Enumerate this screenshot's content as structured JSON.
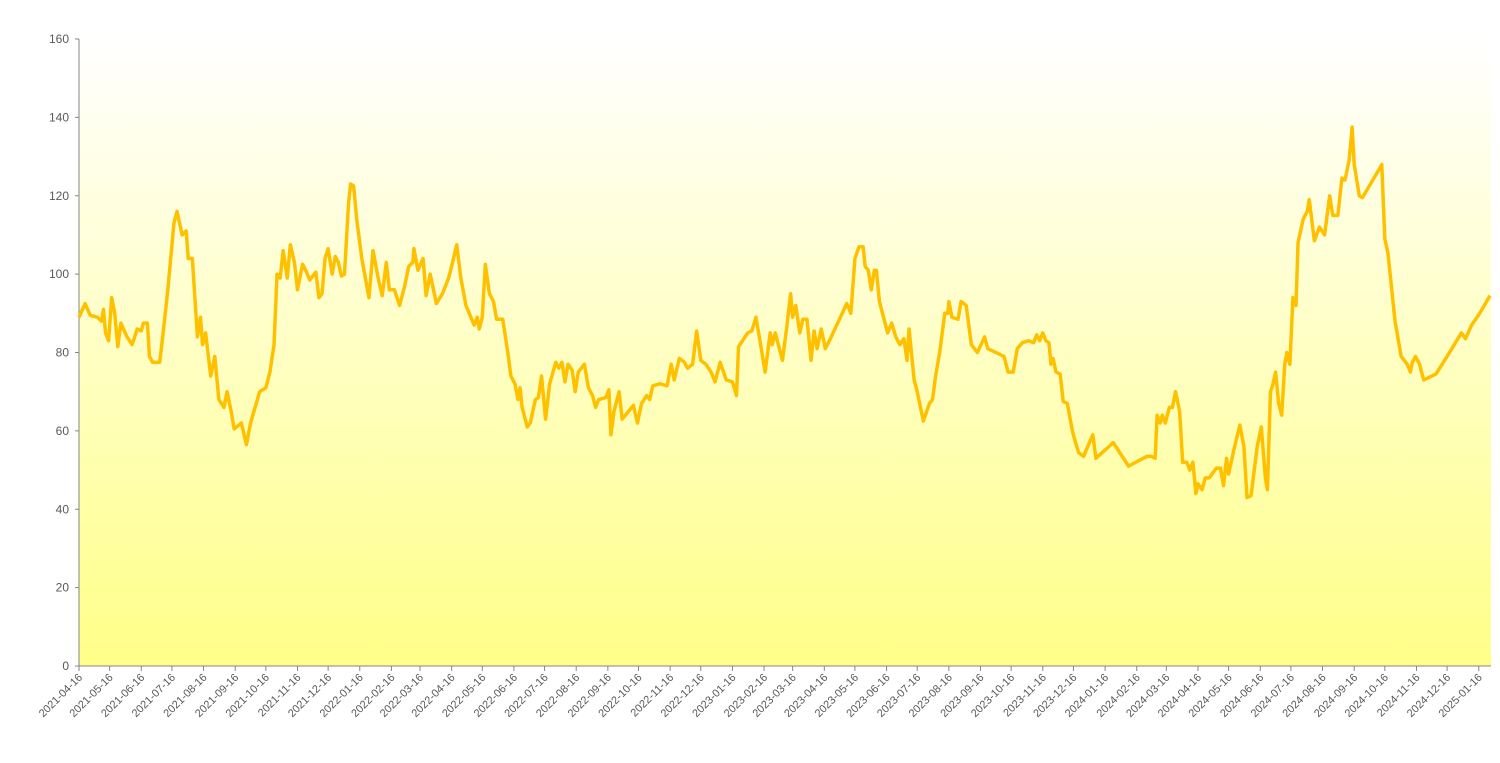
{
  "chart_data": {
    "type": "line",
    "color": "#ffc000",
    "xlim": [
      "2021-04-16",
      "2025-01-28"
    ],
    "ylim": [
      0,
      160
    ],
    "yticks": [
      0,
      20,
      40,
      60,
      80,
      100,
      120,
      140,
      160
    ],
    "xticks": [
      "2021-04-16",
      "2021-05-16",
      "2021-06-16",
      "2021-07-16",
      "2021-08-16",
      "2021-09-16",
      "2021-10-16",
      "2021-11-16",
      "2021-12-16",
      "2022-01-16",
      "2022-02-16",
      "2022-03-16",
      "2022-04-16",
      "2022-05-16",
      "2022-06-16",
      "2022-07-16",
      "2022-08-16",
      "2022-09-16",
      "2022-10-16",
      "2022-11-16",
      "2022-12-16",
      "2023-01-16",
      "2023-02-16",
      "2023-03-16",
      "2023-04-16",
      "2023-05-16",
      "2023-06-16",
      "2023-07-16",
      "2023-08-16",
      "2023-09-16",
      "2023-10-16",
      "2023-11-16",
      "2023-12-16",
      "2024-01-16",
      "2024-02-16",
      "2024-03-16",
      "2024-04-16",
      "2024-05-16",
      "2024-06-16",
      "2024-07-16",
      "2024-08-16",
      "2024-09-16",
      "2024-10-16",
      "2024-11-16",
      "2024-12-16",
      "2025-01-16"
    ],
    "x": [
      "2021-04-16",
      "2021-04-22",
      "2021-04-27",
      "2021-05-04",
      "2021-05-08",
      "2021-05-10",
      "2021-05-12",
      "2021-05-15",
      "2021-05-18",
      "2021-05-21",
      "2021-05-24",
      "2021-05-27",
      "2021-06-02",
      "2021-06-07",
      "2021-06-12",
      "2021-06-16",
      "2021-06-18",
      "2021-06-22",
      "2021-06-24",
      "2021-06-27",
      "2021-07-04",
      "2021-07-07",
      "2021-07-12",
      "2021-07-18",
      "2021-07-21",
      "2021-07-26",
      "2021-07-30",
      "2021-08-01",
      "2021-08-05",
      "2021-08-10",
      "2021-08-13",
      "2021-08-15",
      "2021-08-18",
      "2021-08-23",
      "2021-08-27",
      "2021-08-31",
      "2021-09-05",
      "2021-09-08",
      "2021-09-12",
      "2021-09-15",
      "2021-09-22",
      "2021-09-27",
      "2021-10-01",
      "2021-10-10",
      "2021-10-16",
      "2021-10-20",
      "2021-10-24",
      "2021-10-27",
      "2021-10-30",
      "2021-11-02",
      "2021-11-06",
      "2021-11-09",
      "2021-11-13",
      "2021-11-16",
      "2021-11-21",
      "2021-11-24",
      "2021-11-28",
      "2021-12-04",
      "2021-12-07",
      "2021-12-10",
      "2021-12-13",
      "2021-12-16",
      "2021-12-20",
      "2021-12-23",
      "2021-12-26",
      "2021-12-29",
      "2022-01-01",
      "2022-01-05",
      "2022-01-07",
      "2022-01-10",
      "2022-01-13",
      "2022-01-18",
      "2022-01-25",
      "2022-01-29",
      "2022-02-03",
      "2022-02-07",
      "2022-02-11",
      "2022-02-14",
      "2022-02-19",
      "2022-02-24",
      "2022-03-01",
      "2022-03-05",
      "2022-03-09",
      "2022-03-10",
      "2022-03-14",
      "2022-03-19",
      "2022-03-22",
      "2022-03-26",
      "2022-04-01",
      "2022-04-07",
      "2022-04-13",
      "2022-04-16",
      "2022-04-21",
      "2022-04-25",
      "2022-04-30",
      "2022-05-08",
      "2022-05-11",
      "2022-05-13",
      "2022-05-16",
      "2022-05-19",
      "2022-05-23",
      "2022-05-27",
      "2022-05-30",
      "2022-06-05",
      "2022-06-10",
      "2022-06-13",
      "2022-06-17",
      "2022-06-20",
      "2022-06-22",
      "2022-06-24",
      "2022-06-29",
      "2022-07-02",
      "2022-07-07",
      "2022-07-10",
      "2022-07-13",
      "2022-07-17",
      "2022-07-21",
      "2022-07-27",
      "2022-07-30",
      "2022-08-02",
      "2022-08-05",
      "2022-08-08",
      "2022-08-12",
      "2022-08-15",
      "2022-08-18",
      "2022-08-24",
      "2022-08-28",
      "2022-09-01",
      "2022-09-04",
      "2022-09-07",
      "2022-09-14",
      "2022-09-17",
      "2022-09-19",
      "2022-09-22",
      "2022-09-27",
      "2022-09-30",
      "2022-10-11",
      "2022-10-15",
      "2022-10-19",
      "2022-10-24",
      "2022-10-27",
      "2022-10-30",
      "2022-11-06",
      "2022-11-13",
      "2022-11-17",
      "2022-11-20",
      "2022-11-25",
      "2022-11-30",
      "2022-12-03",
      "2022-12-08",
      "2022-12-12",
      "2022-12-16",
      "2022-12-21",
      "2022-12-26",
      "2022-12-30",
      "2023-01-04",
      "2023-01-10",
      "2023-01-16",
      "2023-01-20",
      "2023-01-22",
      "2023-01-31",
      "2023-02-04",
      "2023-02-08",
      "2023-02-12",
      "2023-02-17",
      "2023-02-22",
      "2023-02-24",
      "2023-02-27",
      "2023-03-06",
      "2023-03-10",
      "2023-03-14",
      "2023-03-16",
      "2023-03-19",
      "2023-03-23",
      "2023-03-26",
      "2023-03-30",
      "2023-04-03",
      "2023-04-06",
      "2023-04-09",
      "2023-04-13",
      "2023-04-17",
      "2023-04-21",
      "2023-04-30",
      "2023-05-08",
      "2023-05-12",
      "2023-05-16",
      "2023-05-20",
      "2023-05-24",
      "2023-05-26",
      "2023-05-29",
      "2023-06-01",
      "2023-06-04",
      "2023-06-06",
      "2023-06-09",
      "2023-06-13",
      "2023-06-17",
      "2023-06-21",
      "2023-06-25",
      "2023-06-29",
      "2023-07-03",
      "2023-07-06",
      "2023-07-08",
      "2023-07-13",
      "2023-07-16",
      "2023-07-22",
      "2023-07-28",
      "2023-07-31",
      "2023-08-03",
      "2023-08-07",
      "2023-08-12",
      "2023-08-15",
      "2023-08-16",
      "2023-08-19",
      "2023-08-25",
      "2023-08-28",
      "2023-09-02",
      "2023-09-07",
      "2023-09-13",
      "2023-09-20",
      "2023-09-23",
      "2023-10-09",
      "2023-10-13",
      "2023-10-18",
      "2023-10-22",
      "2023-10-27",
      "2023-11-02",
      "2023-11-07",
      "2023-11-10",
      "2023-11-13",
      "2023-11-16",
      "2023-11-19",
      "2023-11-22",
      "2023-11-24",
      "2023-11-26",
      "2023-11-29",
      "2023-12-03",
      "2023-12-06",
      "2023-12-10",
      "2023-12-15",
      "2023-12-17",
      "2023-12-21",
      "2023-12-26",
      "2023-12-30",
      "2024-01-04",
      "2024-01-07",
      "2024-01-24",
      "2024-02-08",
      "2024-02-26",
      "2024-03-01",
      "2024-03-05",
      "2024-03-07",
      "2024-03-10",
      "2024-03-12",
      "2024-03-15",
      "2024-03-19",
      "2024-03-22",
      "2024-03-25",
      "2024-03-29",
      "2024-04-01",
      "2024-04-05",
      "2024-04-08",
      "2024-04-11",
      "2024-04-14",
      "2024-04-16",
      "2024-04-20",
      "2024-04-23",
      "2024-04-27",
      "2024-05-04",
      "2024-05-08",
      "2024-05-11",
      "2024-05-14",
      "2024-05-16",
      "2024-05-21",
      "2024-05-27",
      "2024-05-31",
      "2024-06-03",
      "2024-06-07",
      "2024-06-13",
      "2024-06-17",
      "2024-06-21",
      "2024-06-23",
      "2024-06-26",
      "2024-06-28",
      "2024-07-01",
      "2024-07-04",
      "2024-07-07",
      "2024-07-10",
      "2024-07-12",
      "2024-07-15",
      "2024-07-18",
      "2024-07-21",
      "2024-07-23",
      "2024-07-28",
      "2024-08-01",
      "2024-08-03",
      "2024-08-08",
      "2024-08-13",
      "2024-08-18",
      "2024-08-23",
      "2024-08-26",
      "2024-08-31",
      "2024-09-04",
      "2024-09-07",
      "2024-09-11",
      "2024-09-14",
      "2024-09-16",
      "2024-09-21",
      "2024-09-24",
      "2024-10-11",
      "2024-10-13",
      "2024-10-16",
      "2024-10-19",
      "2024-10-22",
      "2024-10-26",
      "2024-11-01",
      "2024-11-07",
      "2024-11-10",
      "2024-11-12",
      "2024-11-15",
      "2024-11-19",
      "2024-11-23",
      "2024-12-05",
      "2024-12-16",
      "2024-12-30",
      "2025-01-03",
      "2025-01-09",
      "2025-01-17",
      "2025-01-27"
    ],
    "values": [
      89,
      92.5,
      89.5,
      89,
      88,
      91,
      85,
      83,
      94,
      90,
      81.5,
      87.5,
      84,
      82,
      86,
      85.5,
      87.5,
      87.5,
      79,
      77.5,
      77.5,
      84,
      96,
      113,
      116,
      110,
      111,
      104,
      104,
      84,
      89,
      82,
      85,
      74,
      79,
      68,
      66,
      70,
      65,
      60.5,
      62,
      56.5,
      62,
      70,
      71,
      75,
      82,
      100,
      99,
      106,
      99,
      107.5,
      103,
      96,
      102.5,
      101,
      98.5,
      100.5,
      94,
      95,
      104,
      106.5,
      100,
      104.5,
      103,
      99.5,
      100,
      118,
      123,
      122.5,
      114,
      104,
      94,
      106,
      99,
      94.5,
      103,
      96,
      96,
      92,
      97,
      102,
      103,
      106.5,
      101,
      104,
      94.5,
      100,
      92.5,
      95,
      99,
      102,
      107.5,
      99,
      92,
      87,
      89,
      86,
      89,
      102.5,
      95,
      93,
      88.5,
      88.5,
      80,
      74,
      72,
      68,
      71,
      66,
      61,
      62,
      68,
      68.5,
      74,
      63,
      72,
      77.5,
      76,
      77.5,
      72.5,
      77,
      75.5,
      70,
      75,
      77,
      71,
      69,
      66,
      68,
      68.5,
      70.5,
      59,
      65,
      70,
      63,
      66.5,
      62,
      67,
      69,
      68,
      71.5,
      72,
      71.5,
      77,
      73,
      78.5,
      77.5,
      76,
      77,
      85.5,
      78,
      77,
      75,
      72.5,
      77.5,
      73,
      72.5,
      69,
      81.5,
      85,
      85.5,
      89,
      83,
      75,
      85,
      82,
      85,
      78,
      86,
      95,
      89,
      92,
      85,
      88.5,
      88.5,
      78,
      85.5,
      81,
      86,
      81,
      83,
      88,
      92.5,
      90,
      104,
      107,
      107,
      102,
      101,
      96,
      101,
      101,
      93,
      89,
      85,
      87.5,
      84,
      82,
      83.5,
      78,
      86,
      73,
      70,
      62.5,
      67,
      68,
      74,
      80,
      90,
      90,
      93,
      89,
      88.5,
      93,
      92,
      82,
      80,
      84,
      81,
      79,
      75,
      75,
      81,
      82.5,
      83,
      82.5,
      84.5,
      83,
      85,
      83,
      82.5,
      77,
      78.5,
      75,
      74.5,
      67.5,
      67,
      60,
      58,
      54.5,
      53.5,
      56,
      59,
      53,
      57,
      51,
      53.5,
      53.5,
      53,
      64,
      62,
      64,
      62,
      66,
      66,
      70,
      65,
      52,
      52,
      50,
      52,
      44,
      46.5,
      45,
      48,
      48,
      50.5,
      50.5,
      46,
      53,
      49,
      55,
      61.5,
      56,
      43,
      43.5,
      56,
      61,
      48,
      45,
      70,
      71.5,
      75,
      67,
      64,
      77,
      80,
      77,
      94,
      92,
      108,
      114,
      116,
      119,
      108.5,
      112,
      110,
      120,
      115,
      115,
      124.5,
      124,
      129,
      137.5,
      128,
      120,
      119.5,
      127,
      128,
      109,
      105.5,
      98,
      88,
      79,
      77,
      75,
      77.5,
      79,
      77,
      73,
      74.5,
      79,
      85,
      83.5,
      87,
      90,
      94.5
    ]
  }
}
